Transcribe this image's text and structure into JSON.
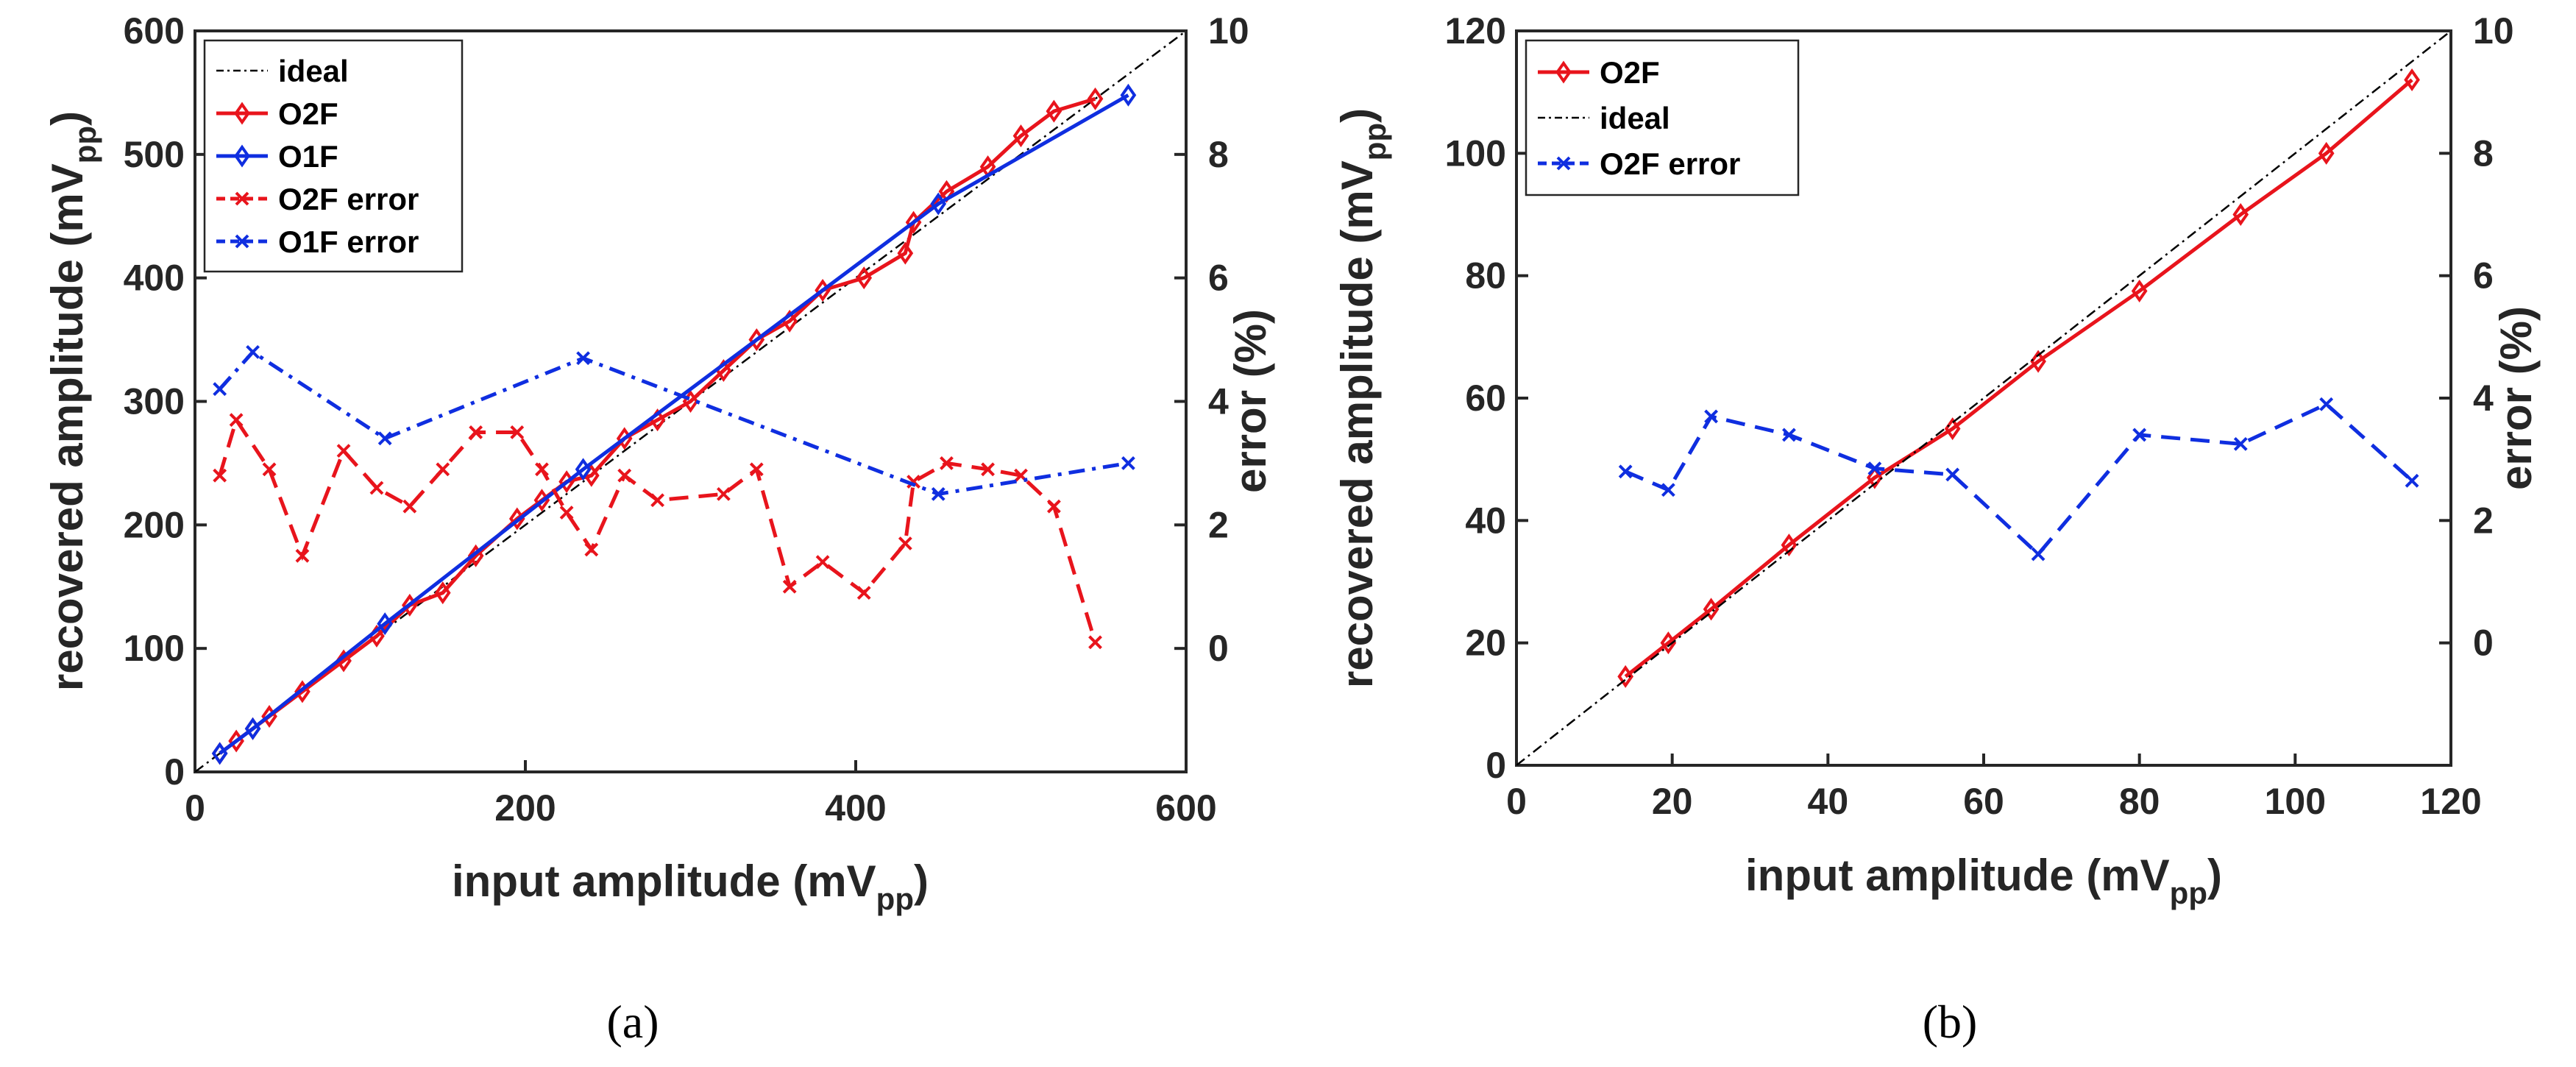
{
  "chart_data": [
    {
      "type": "line",
      "panel_label": "(a)",
      "xlabel": {
        "main": "input amplitude (mV",
        "sub": "pp",
        "close": ")"
      },
      "ylabel": {
        "main": "recovered amplitude (mV",
        "sub": "pp",
        "close": ")"
      },
      "y2label": "error (%)",
      "xlim": [
        0,
        600
      ],
      "ylim": [
        0,
        600
      ],
      "y2lim": [
        -2,
        10
      ],
      "x_ticks": [
        "0",
        "200",
        "400",
        "600"
      ],
      "y_ticks": [
        "0",
        "100",
        "200",
        "300",
        "400",
        "500",
        "600"
      ],
      "y2_ticks": [
        "0",
        "2",
        "4",
        "6",
        "8",
        "10"
      ],
      "legend_position": "top-left",
      "grid": false,
      "series": [
        {
          "name": "ideal",
          "axis": "left",
          "color": "#000000",
          "dash": "dashdot",
          "marker": "none",
          "x": [
            0,
            600
          ],
          "y": [
            0,
            600
          ]
        },
        {
          "name": "O2F",
          "axis": "left",
          "color": "#e8141c",
          "dash": "solid",
          "marker": "diamond",
          "x": [
            15,
            25,
            35,
            45,
            65,
            90,
            110,
            130,
            150,
            170,
            195,
            210,
            225,
            240,
            260,
            280,
            300,
            320,
            340,
            360,
            380,
            405,
            430,
            435,
            455,
            480,
            500,
            520,
            545
          ],
          "y": [
            15,
            25,
            35,
            45,
            65,
            90,
            110,
            135,
            145,
            175,
            205,
            220,
            235,
            240,
            270,
            285,
            300,
            325,
            350,
            365,
            390,
            400,
            420,
            445,
            470,
            490,
            515,
            535,
            545
          ]
        },
        {
          "name": "O1F",
          "axis": "left",
          "color": "#0f2ee0",
          "dash": "solid",
          "marker": "diamond",
          "x": [
            15,
            35,
            115,
            235,
            450,
            565
          ],
          "y": [
            15,
            35,
            120,
            245,
            460,
            548
          ]
        },
        {
          "name": "O2F error",
          "axis": "right",
          "color": "#e8141c",
          "dash": "dashed",
          "marker": "x",
          "x": [
            15,
            25,
            45,
            65,
            90,
            110,
            130,
            150,
            170,
            195,
            210,
            225,
            240,
            260,
            280,
            320,
            340,
            360,
            380,
            405,
            430,
            435,
            455,
            480,
            500,
            520,
            545
          ],
          "y": [
            2.8,
            3.7,
            2.9,
            1.5,
            3.2,
            2.6,
            2.3,
            2.9,
            3.5,
            3.5,
            2.9,
            2.2,
            1.6,
            2.8,
            2.4,
            2.5,
            2.9,
            1.0,
            1.4,
            0.9,
            1.7,
            2.7,
            3.0,
            2.9,
            2.8,
            2.3,
            0.1
          ]
        },
        {
          "name": "O1F error",
          "axis": "right",
          "color": "#0f2ee0",
          "dash": "dashdot",
          "marker": "x",
          "x": [
            15,
            35,
            115,
            235,
            450,
            565
          ],
          "y": [
            4.2,
            4.8,
            3.4,
            4.7,
            2.5,
            3.0
          ]
        }
      ]
    },
    {
      "type": "line",
      "panel_label": "(b)",
      "xlabel": {
        "main": "input amplitude (mV",
        "sub": "pp",
        "close": ")"
      },
      "ylabel": {
        "main": "recovered amplitude (mV",
        "sub": "pp",
        "close": ")"
      },
      "y2label": "error (%)",
      "xlim": [
        0,
        120
      ],
      "ylim": [
        0,
        120
      ],
      "y2lim": [
        -2,
        10
      ],
      "x_ticks": [
        "0",
        "20",
        "40",
        "60",
        "80",
        "100",
        "120"
      ],
      "y_ticks": [
        "0",
        "20",
        "40",
        "60",
        "80",
        "100",
        "120"
      ],
      "y2_ticks": [
        "0",
        "2",
        "4",
        "6",
        "8",
        "10"
      ],
      "legend_position": "top-left",
      "grid": false,
      "series": [
        {
          "name": "O2F",
          "axis": "left",
          "color": "#e8141c",
          "dash": "solid",
          "marker": "diamond",
          "x": [
            14,
            19.5,
            25,
            35,
            46,
            56,
            67,
            80,
            93,
            104,
            115
          ],
          "y": [
            14.5,
            20,
            25.5,
            36,
            47,
            55,
            66,
            77.5,
            90,
            100,
            112
          ]
        },
        {
          "name": "ideal",
          "axis": "left",
          "color": "#000000",
          "dash": "dashdot",
          "marker": "none",
          "x": [
            0,
            120
          ],
          "y": [
            0,
            120
          ]
        },
        {
          "name": "O2F error",
          "axis": "right",
          "color": "#0f2ee0",
          "dash": "dashed",
          "marker": "x",
          "x": [
            14,
            19.5,
            25,
            35,
            46,
            56,
            67,
            80,
            93,
            104,
            115
          ],
          "y": [
            2.8,
            2.5,
            3.7,
            3.4,
            2.85,
            2.75,
            1.45,
            3.4,
            3.25,
            3.9,
            2.65
          ]
        }
      ]
    }
  ]
}
